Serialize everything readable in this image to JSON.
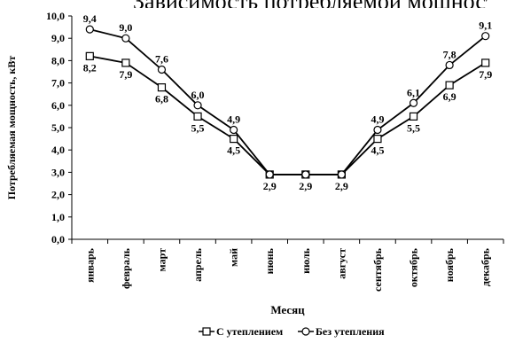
{
  "header_fragment": "Зависимость потребляемой мощности",
  "chart_data": {
    "type": "line",
    "categories": [
      "январь",
      "февраль",
      "март",
      "апрель",
      "май",
      "июнь",
      "июль",
      "август",
      "сентябрь",
      "октябрь",
      "ноябрь",
      "декабрь"
    ],
    "series": [
      {
        "name": "С утеплением",
        "marker": "square",
        "values": [
          8.2,
          7.9,
          6.8,
          5.5,
          4.5,
          2.9,
          2.9,
          2.9,
          4.5,
          5.5,
          6.9,
          7.9
        ]
      },
      {
        "name": "Без утепления",
        "marker": "circle",
        "values": [
          9.4,
          9.0,
          7.6,
          6.0,
          4.9,
          2.9,
          2.9,
          2.9,
          4.9,
          6.1,
          7.8,
          9.1
        ]
      }
    ],
    "y_ticks": [
      "0,0",
      "1,0",
      "2,0",
      "3,0",
      "4,0",
      "5,0",
      "6,0",
      "7,0",
      "8,0",
      "9,0",
      "10,0"
    ],
    "xlabel": "Месяц",
    "ylabel": "Потребляемая мощность, кВт",
    "ylim": [
      0,
      10
    ],
    "grid": false,
    "legend_position": "bottom-center",
    "line_color": "#000000"
  }
}
